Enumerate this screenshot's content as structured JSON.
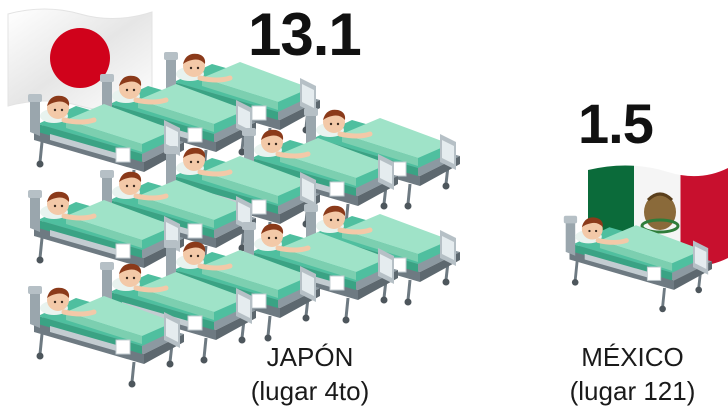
{
  "japan": {
    "value": "13.1",
    "country": "JAPÓN",
    "rank": "(lugar 4to)",
    "bed_icons": 13,
    "flag_icon": "japan-flag-icon"
  },
  "mexico": {
    "value": "1.5",
    "country": "MÉXICO",
    "rank": "(lugar 121)",
    "bed_icons": 1,
    "flag_icon": "mexico-flag-icon"
  },
  "colors": {
    "mattress": "#4fbf9f",
    "frame": "#7d8b93",
    "sheet": "#9fe3c8",
    "hair": "#8b3a1a",
    "skin": "#f3c9a8",
    "japan_red": "#d0021b",
    "mexico_green": "#0b6b3a",
    "mexico_red": "#c8102e"
  }
}
